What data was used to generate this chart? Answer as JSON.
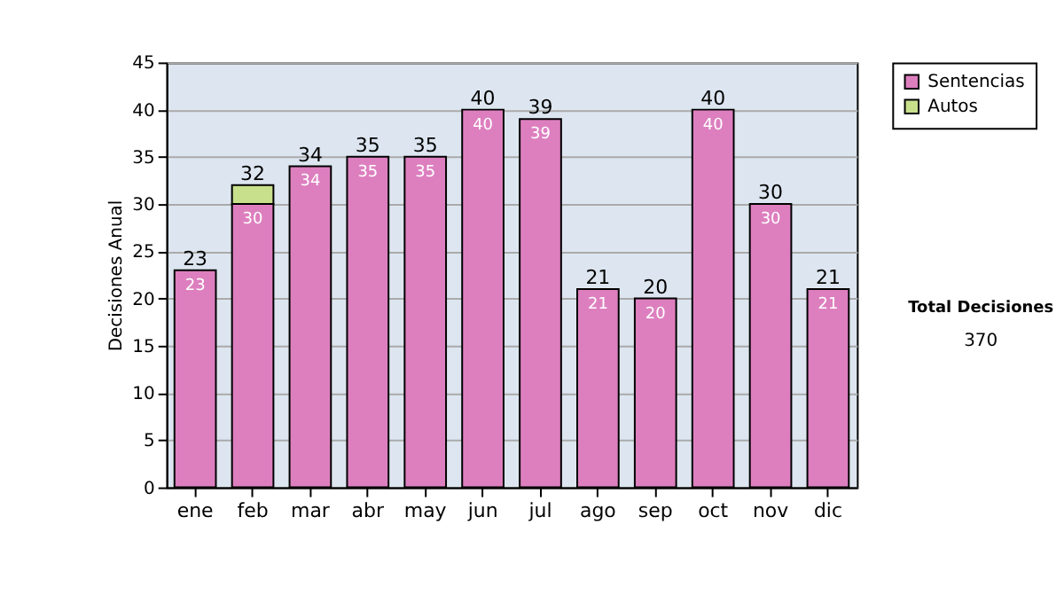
{
  "chart_data": {
    "type": "bar",
    "stacked": true,
    "ylabel": "Decisiones Anual",
    "categories": [
      "ene",
      "feb",
      "mar",
      "abr",
      "may",
      "jun",
      "jul",
      "ago",
      "sep",
      "oct",
      "nov",
      "dic"
    ],
    "series": [
      {
        "name": "Sentencias",
        "color": "#dd7fbf",
        "values": [
          23,
          30,
          34,
          35,
          35,
          40,
          39,
          21,
          20,
          40,
          30,
          21
        ],
        "value_labels": [
          "23",
          "30",
          "34",
          "35",
          "35",
          "40",
          "39",
          "21",
          "20",
          "40",
          "30",
          "21"
        ]
      },
      {
        "name": "Autos",
        "color": "#c8e08c",
        "values": [
          null,
          2,
          null,
          null,
          null,
          null,
          null,
          null,
          null,
          null,
          null,
          null
        ]
      }
    ],
    "totals": [
      "23",
      "32",
      "34",
      "35",
      "35",
      "40",
      "39",
      "21",
      "20",
      "40",
      "30",
      "21"
    ],
    "ylim": [
      0,
      45
    ],
    "yticks": [
      0,
      5,
      10,
      15,
      20,
      25,
      30,
      35,
      40,
      45
    ],
    "grid": "y",
    "legend": "right",
    "annotations": [
      "Total Decisiones",
      "370"
    ]
  }
}
